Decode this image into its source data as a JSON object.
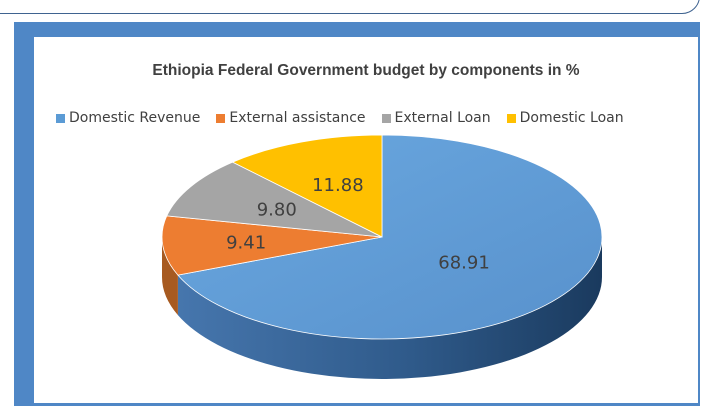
{
  "chart_data": {
    "type": "pie",
    "title": "Ethiopia Federal Government budget by components in %",
    "categories": [
      "Domestic Revenue",
      "External assistance",
      "External Loan",
      "Domestic Loan"
    ],
    "values": [
      68.91,
      9.41,
      9.8,
      11.88
    ],
    "data_labels": [
      "68.91",
      "9.41",
      "9.80",
      "11.88"
    ],
    "colors": [
      "#5b9bd5",
      "#ed7d31",
      "#a5a5a5",
      "#ffc000"
    ],
    "style": "3d-pie",
    "legend_position": "top"
  }
}
